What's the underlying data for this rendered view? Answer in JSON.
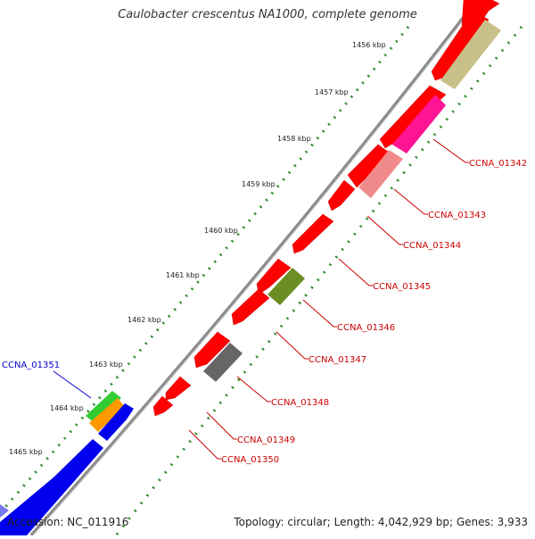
{
  "title": "Caulobacter crescentus NA1000, complete genome",
  "footer": {
    "accession": "Accession: NC_011916",
    "summary": "Topology: circular; Length: 4,042,929 bp; Genes: 3,933"
  },
  "ticks": [
    "1456 kbp",
    "1457 kbp",
    "1458 kbp",
    "1459 kbp",
    "1460 kbp",
    "1461 kbp",
    "1462 kbp",
    "1463 kbp",
    "1464 kbp",
    "1465 kbp"
  ],
  "gene_labels": [
    "CCNA_01342",
    "CCNA_01343",
    "CCNA_01344",
    "CCNA_01345",
    "CCNA_01346",
    "CCNA_01347",
    "CCNA_01348",
    "CCNA_01349",
    "CCNA_01350",
    "CCNA_01351"
  ],
  "colors": {
    "backbone": "#8c8c8c",
    "forward_gene": "#ff0000",
    "tick_dots": "#2e8b2e",
    "label_red": "#cc0000",
    "label_blue": "#0000cc",
    "gene_blue": "#0000ee",
    "khaki": "#c8c088",
    "magenta": "#ff1493",
    "salmon": "#f08a8a",
    "olive": "#6b8e23",
    "gray": "#666666",
    "green": "#33cc33",
    "orange": "#ff9900"
  }
}
